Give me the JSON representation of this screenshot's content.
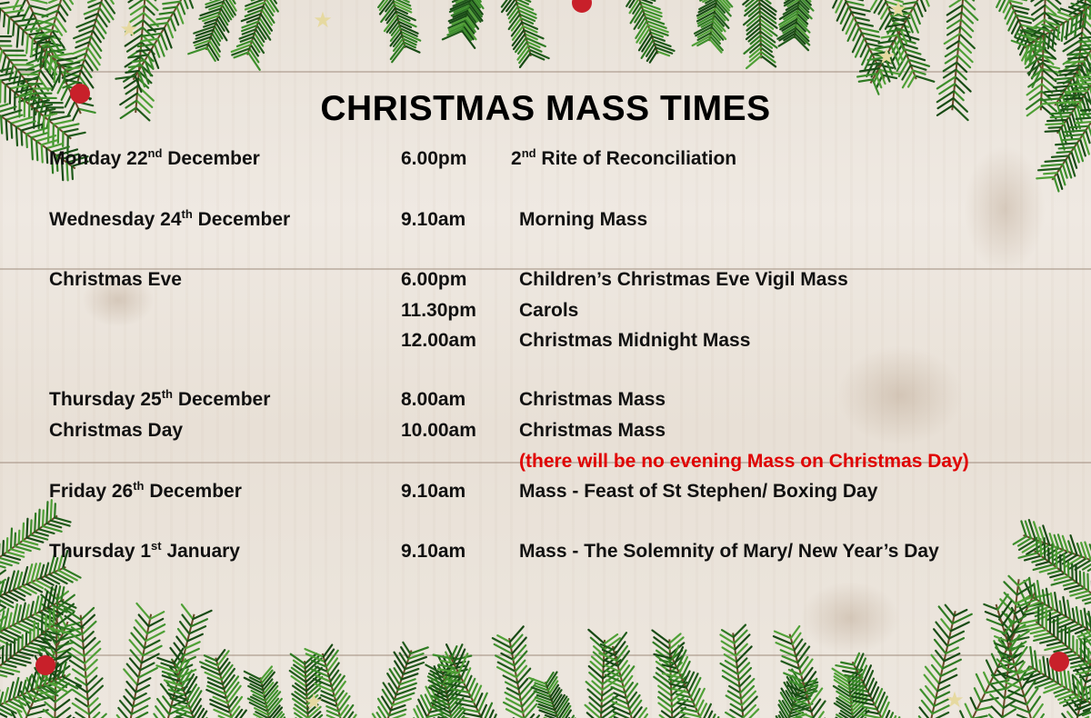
{
  "title": "CHRISTMAS MASS TIMES",
  "colors": {
    "text": "#111111",
    "note": "#e00000",
    "background": "#ece5dc"
  },
  "schedule": [
    {
      "day": {
        "pre": "Monday 22",
        "sup": "nd",
        "post": " December"
      },
      "time": "6.00pm",
      "event": {
        "pre": "2",
        "sup": "nd",
        "post": " Rite of Reconciliation"
      }
    },
    {
      "day": {
        "pre": "Wednesday 24",
        "sup": "th",
        "post": " December"
      },
      "time": "9.10am",
      "event": {
        "pre": "Morning Mass",
        "sup": "",
        "post": ""
      }
    },
    {
      "day": {
        "pre": "Christmas Eve",
        "sup": "",
        "post": ""
      },
      "time": "6.00pm",
      "event": {
        "pre": "Children’s Christmas Eve Vigil Mass",
        "sup": "",
        "post": ""
      }
    },
    {
      "day": {
        "pre": "",
        "sup": "",
        "post": ""
      },
      "time": "11.30pm",
      "event": {
        "pre": "Carols",
        "sup": "",
        "post": ""
      }
    },
    {
      "day": {
        "pre": "",
        "sup": "",
        "post": ""
      },
      "time": "12.00am",
      "event": {
        "pre": "Christmas Midnight Mass",
        "sup": "",
        "post": ""
      }
    },
    {
      "day": {
        "pre": "Thursday 25",
        "sup": "th",
        "post": " December"
      },
      "time": "8.00am",
      "event": {
        "pre": "Christmas Mass",
        "sup": "",
        "post": ""
      }
    },
    {
      "day": {
        "pre": "Christmas Day",
        "sup": "",
        "post": ""
      },
      "time": "10.00am",
      "event": {
        "pre": "Christmas Mass",
        "sup": "",
        "post": ""
      }
    },
    {
      "day": {
        "pre": "",
        "sup": "",
        "post": ""
      },
      "time": "",
      "event": {
        "pre": "(there will be no evening Mass on Christmas Day)",
        "sup": "",
        "post": ""
      },
      "note": true
    },
    {
      "day": {
        "pre": "Friday 26",
        "sup": "th",
        "post": " December"
      },
      "time": "9.10am",
      "event": {
        "pre": "Mass - Feast of St Stephen/ Boxing Day",
        "sup": "",
        "post": ""
      }
    },
    {
      "day": {
        "pre": "Thursday 1",
        "sup": "st",
        "post": " January"
      },
      "time": "9.10am",
      "event": {
        "pre": "Mass - The Solemnity of Mary/ New Year’s Day",
        "sup": "",
        "post": ""
      }
    }
  ],
  "decorations": {
    "top": "pine-garland",
    "bottom": "pine-garland",
    "ornaments": "red-baubles",
    "stars": "gold-stars"
  }
}
